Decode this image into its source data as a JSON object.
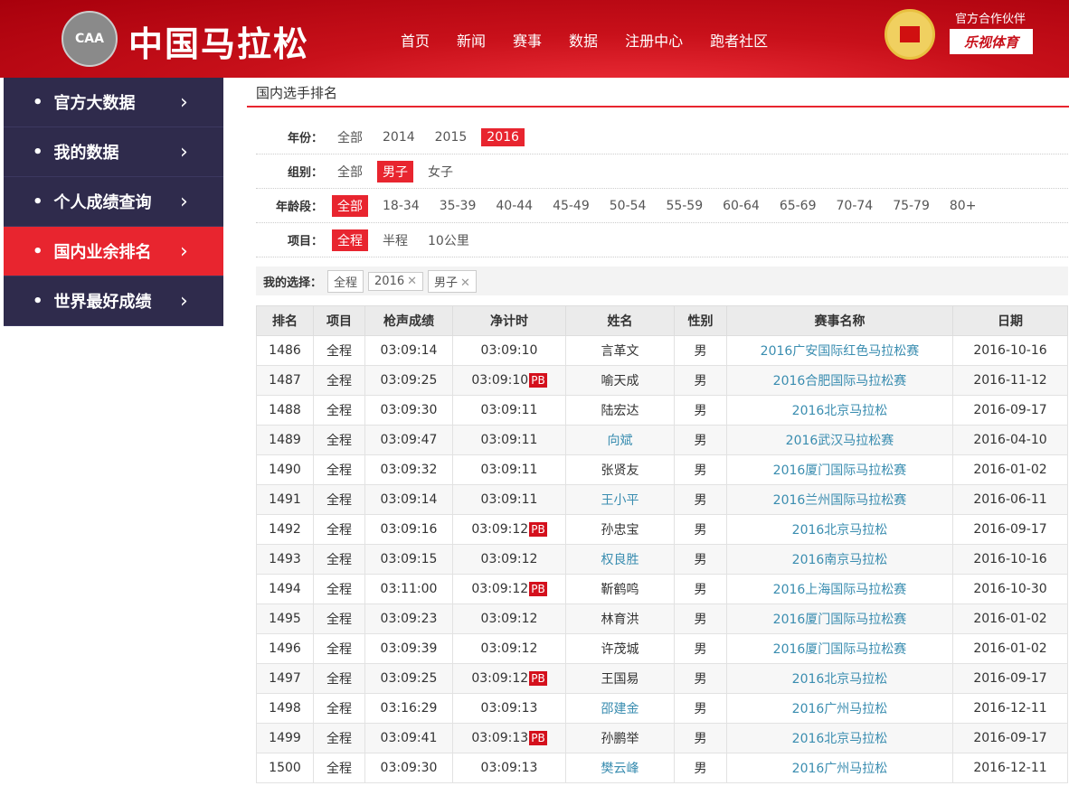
{
  "header": {
    "logo_badge": "CAA",
    "site_title": "中国马拉松",
    "nav": [
      "首页",
      "新闻",
      "赛事",
      "数据",
      "注册中心",
      "跑者社区"
    ],
    "partner_label": "官方合作伙伴",
    "partner_name": "乐视体育"
  },
  "sidebar": {
    "items": [
      {
        "label": "官方大数据"
      },
      {
        "label": "我的数据"
      },
      {
        "label": "个人成绩查询"
      },
      {
        "label": "国内业余排名",
        "active": true
      },
      {
        "label": "世界最好成绩"
      }
    ]
  },
  "main": {
    "title": "国内选手排名",
    "filters": [
      {
        "label": "年份：",
        "options": [
          "全部",
          "2014",
          "2015",
          "2016"
        ],
        "selected": "2016"
      },
      {
        "label": "组别：",
        "options": [
          "全部",
          "男子",
          "女子"
        ],
        "selected": "男子"
      },
      {
        "label": "年龄段：",
        "options": [
          "全部",
          "18-34",
          "35-39",
          "40-44",
          "45-49",
          "50-54",
          "55-59",
          "60-64",
          "65-69",
          "70-74",
          "75-79",
          "80+"
        ],
        "selected": "全部"
      },
      {
        "label": "项目：",
        "options": [
          "全程",
          "半程",
          "10公里"
        ],
        "selected": "全程"
      }
    ],
    "choice_label": "我的选择：",
    "chips": [
      {
        "text": "全程",
        "removable": false
      },
      {
        "text": "2016",
        "removable": true
      },
      {
        "text": "男子",
        "removable": true
      }
    ],
    "remove_glyph": "✕"
  },
  "table": {
    "headers": [
      "排名",
      "项目",
      "枪声成绩",
      "净计时",
      "姓名",
      "性别",
      "赛事名称",
      "日期"
    ],
    "pb_label": "PB",
    "rows": [
      [
        "1486",
        "全程",
        "03:09:14",
        "03:09:10",
        false,
        "言革文",
        false,
        "男",
        "2016广安国际红色马拉松赛",
        "2016-10-16"
      ],
      [
        "1487",
        "全程",
        "03:09:25",
        "03:09:10",
        true,
        "喻天成",
        false,
        "男",
        "2016合肥国际马拉松赛",
        "2016-11-12"
      ],
      [
        "1488",
        "全程",
        "03:09:30",
        "03:09:11",
        false,
        "陆宏达",
        false,
        "男",
        "2016北京马拉松",
        "2016-09-17"
      ],
      [
        "1489",
        "全程",
        "03:09:47",
        "03:09:11",
        false,
        "向斌",
        true,
        "男",
        "2016武汉马拉松赛",
        "2016-04-10"
      ],
      [
        "1490",
        "全程",
        "03:09:32",
        "03:09:11",
        false,
        "张贤友",
        false,
        "男",
        "2016厦门国际马拉松赛",
        "2016-01-02"
      ],
      [
        "1491",
        "全程",
        "03:09:14",
        "03:09:11",
        false,
        "王小平",
        true,
        "男",
        "2016兰州国际马拉松赛",
        "2016-06-11"
      ],
      [
        "1492",
        "全程",
        "03:09:16",
        "03:09:12",
        true,
        "孙忠宝",
        false,
        "男",
        "2016北京马拉松",
        "2016-09-17"
      ],
      [
        "1493",
        "全程",
        "03:09:15",
        "03:09:12",
        false,
        "权良胜",
        true,
        "男",
        "2016南京马拉松",
        "2016-10-16"
      ],
      [
        "1494",
        "全程",
        "03:11:00",
        "03:09:12",
        true,
        "靳鹤鸣",
        false,
        "男",
        "2016上海国际马拉松赛",
        "2016-10-30"
      ],
      [
        "1495",
        "全程",
        "03:09:23",
        "03:09:12",
        false,
        "林育洪",
        false,
        "男",
        "2016厦门国际马拉松赛",
        "2016-01-02"
      ],
      [
        "1496",
        "全程",
        "03:09:39",
        "03:09:12",
        false,
        "许茂城",
        false,
        "男",
        "2016厦门国际马拉松赛",
        "2016-01-02"
      ],
      [
        "1497",
        "全程",
        "03:09:25",
        "03:09:12",
        true,
        "王国易",
        false,
        "男",
        "2016北京马拉松",
        "2016-09-17"
      ],
      [
        "1498",
        "全程",
        "03:16:29",
        "03:09:13",
        false,
        "邵建金",
        true,
        "男",
        "2016广州马拉松",
        "2016-12-11"
      ],
      [
        "1499",
        "全程",
        "03:09:41",
        "03:09:13",
        true,
        "孙鹏举",
        false,
        "男",
        "2016北京马拉松",
        "2016-09-17"
      ],
      [
        "1500",
        "全程",
        "03:09:30",
        "03:09:13",
        false,
        "樊云峰",
        true,
        "男",
        "2016广州马拉松",
        "2016-12-11"
      ]
    ]
  },
  "colors": {
    "accent": "#e8252f",
    "sidebar": "#2f2b4c",
    "link": "#3a8db0"
  }
}
